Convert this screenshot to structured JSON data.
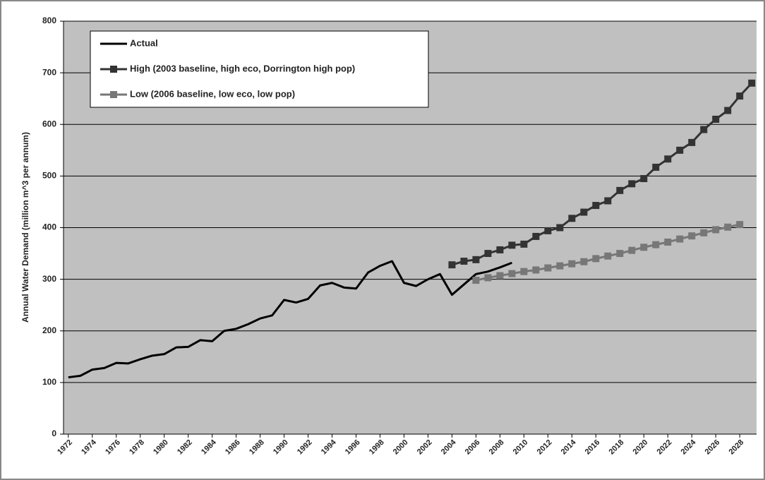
{
  "chart_data": {
    "type": "line",
    "y_label": "Annual Water Demand (million m^3 per annum)",
    "xlim": [
      1971.6,
      2029.4
    ],
    "xticks": [
      1972,
      1974,
      1976,
      1978,
      1980,
      1982,
      1984,
      1986,
      1988,
      1990,
      1992,
      1994,
      1996,
      1998,
      2000,
      2002,
      2004,
      2006,
      2008,
      2010,
      2012,
      2014,
      2016,
      2018,
      2020,
      2022,
      2024,
      2026,
      2028
    ],
    "ylim": [
      0,
      800
    ],
    "yticks": [
      0,
      100,
      200,
      300,
      400,
      500,
      600,
      700,
      800
    ],
    "grid": true,
    "legend": "top-left",
    "series": [
      {
        "name": "Actual",
        "color": "#000000",
        "marker": "none",
        "x": [
          1972,
          1973,
          1974,
          1975,
          1976,
          1977,
          1978,
          1979,
          1980,
          1981,
          1982,
          1983,
          1984,
          1985,
          1986,
          1987,
          1988,
          1989,
          1990,
          1991,
          1992,
          1993,
          1994,
          1995,
          1996,
          1997,
          1998,
          1999,
          2000,
          2001,
          2002,
          2003,
          2004,
          2005,
          2006,
          2007,
          2008,
          2009
        ],
        "values": [
          110,
          113,
          125,
          128,
          138,
          137,
          145,
          152,
          155,
          168,
          169,
          182,
          180,
          200,
          204,
          213,
          224,
          230,
          260,
          255,
          262,
          288,
          293,
          284,
          282,
          313,
          326,
          335,
          293,
          287,
          300,
          310,
          270,
          290,
          310,
          315,
          323,
          332
        ]
      },
      {
        "name": "High (2003 baseline, high eco, Dorrington high pop)",
        "color": "#333333",
        "marker": "square",
        "x": [
          2004,
          2005,
          2006,
          2007,
          2008,
          2009,
          2010,
          2011,
          2012,
          2013,
          2014,
          2015,
          2016,
          2017,
          2018,
          2019,
          2020,
          2021,
          2022,
          2023,
          2024,
          2025,
          2026,
          2027,
          2028,
          2029
        ],
        "values": [
          328,
          335,
          338,
          350,
          357,
          366,
          368,
          383,
          394,
          400,
          418,
          430,
          443,
          452,
          472,
          485,
          495,
          517,
          533,
          550,
          565,
          590,
          610,
          627,
          655,
          680
        ]
      },
      {
        "name": "Low (2006 baseline, low eco, low pop)",
        "color": "#777777",
        "marker": "square",
        "x": [
          2006,
          2007,
          2008,
          2009,
          2010,
          2011,
          2012,
          2013,
          2014,
          2015,
          2016,
          2017,
          2018,
          2019,
          2020,
          2021,
          2022,
          2023,
          2024,
          2025,
          2026,
          2027,
          2028
        ],
        "values": [
          298,
          303,
          307,
          311,
          315,
          318,
          322,
          326,
          330,
          334,
          340,
          345,
          350,
          356,
          362,
          367,
          372,
          378,
          384,
          390,
          396,
          401,
          406
        ]
      }
    ]
  }
}
